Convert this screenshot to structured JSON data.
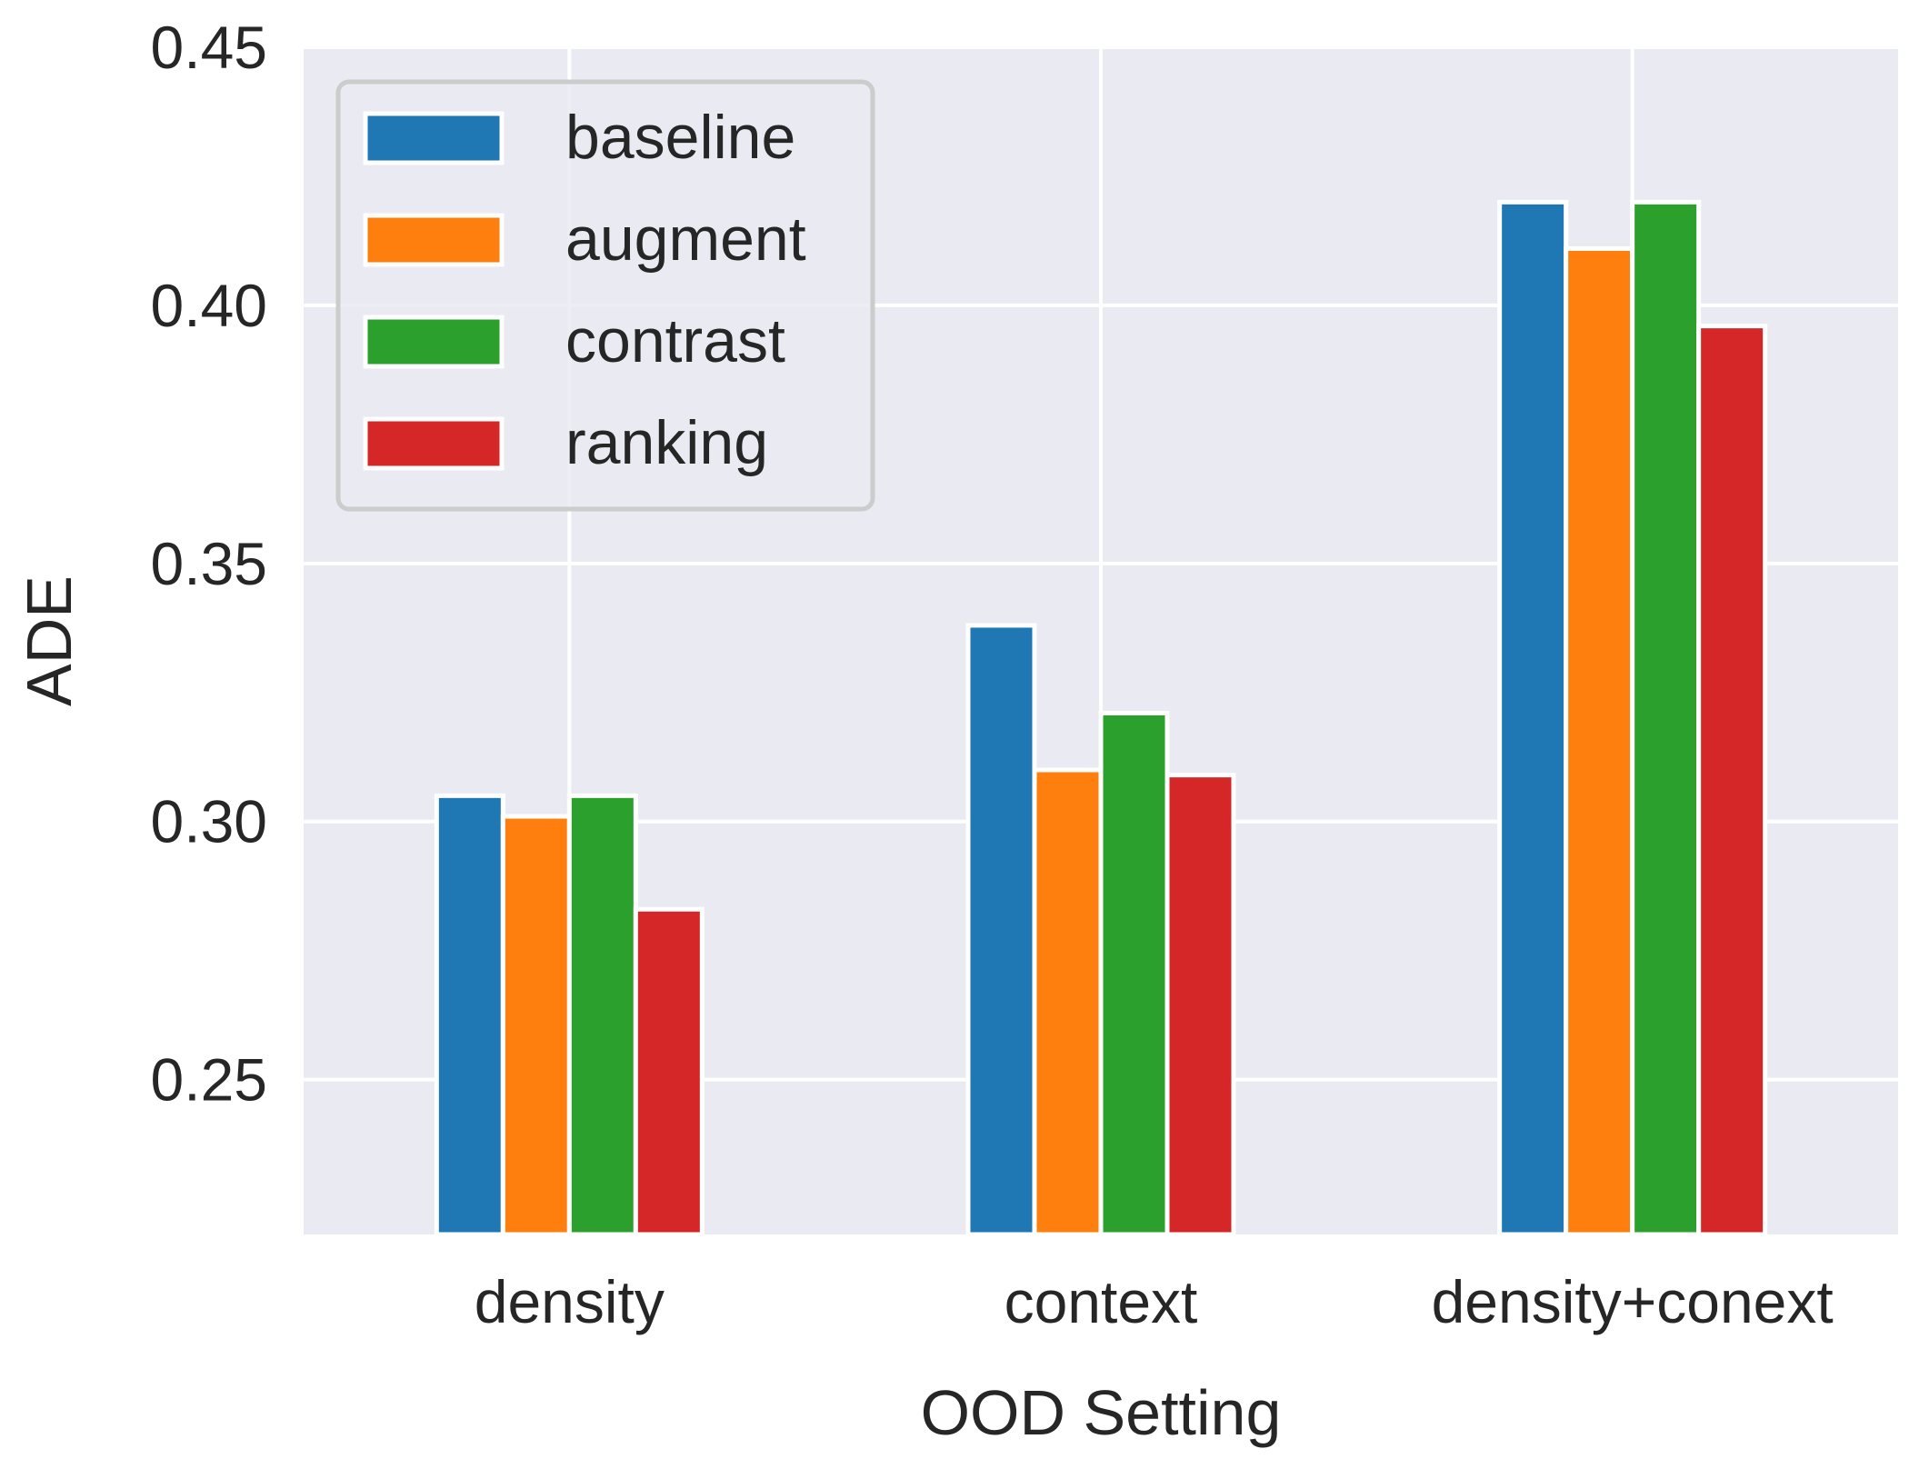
{
  "chart_data": {
    "type": "bar",
    "title": "",
    "xlabel": "OOD Setting",
    "ylabel": "ADE",
    "categories": [
      "density",
      "context",
      "density+conext"
    ],
    "ylim": [
      0.22,
      0.45
    ],
    "yticks": [
      0.25,
      0.3,
      0.35,
      0.4,
      0.45
    ],
    "ytick_labels": [
      "0.25",
      "0.30",
      "0.35",
      "0.40",
      "0.45"
    ],
    "grid": true,
    "legend_position": "top-left",
    "background": "#eaeaf2",
    "series": [
      {
        "name": "baseline",
        "color": "#1f77b4",
        "values": [
          0.305,
          0.338,
          0.42
        ]
      },
      {
        "name": "augment",
        "color": "#ff7f0e",
        "values": [
          0.301,
          0.31,
          0.411
        ]
      },
      {
        "name": "contrast",
        "color": "#2ca02c",
        "values": [
          0.305,
          0.321,
          0.42
        ]
      },
      {
        "name": "ranking",
        "color": "#d62728",
        "values": [
          0.283,
          0.309,
          0.396
        ]
      }
    ]
  }
}
